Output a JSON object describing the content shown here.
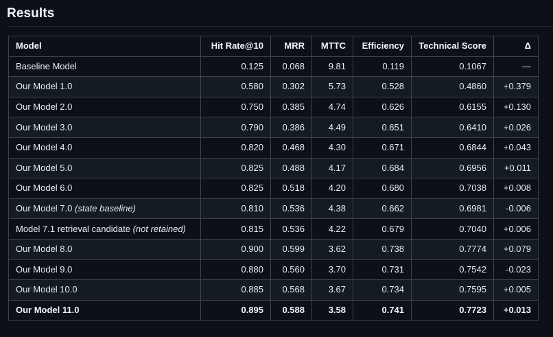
{
  "heading": "Results",
  "table": {
    "columns": [
      "Model",
      "Hit Rate@10",
      "MRR",
      "MTTC",
      "Efficiency",
      "Technical Score",
      "Δ"
    ],
    "rows": [
      {
        "model": "Baseline Model",
        "note": "",
        "hit": "0.125",
        "mrr": "0.068",
        "mttc": "9.81",
        "eff": "0.119",
        "tech": "0.1067",
        "delta": "—"
      },
      {
        "model": "Our Model 1.0",
        "note": "",
        "hit": "0.580",
        "mrr": "0.302",
        "mttc": "5.73",
        "eff": "0.528",
        "tech": "0.4860",
        "delta": "+0.379"
      },
      {
        "model": "Our Model 2.0",
        "note": "",
        "hit": "0.750",
        "mrr": "0.385",
        "mttc": "4.74",
        "eff": "0.626",
        "tech": "0.6155",
        "delta": "+0.130"
      },
      {
        "model": "Our Model 3.0",
        "note": "",
        "hit": "0.790",
        "mrr": "0.386",
        "mttc": "4.49",
        "eff": "0.651",
        "tech": "0.6410",
        "delta": "+0.026"
      },
      {
        "model": "Our Model 4.0",
        "note": "",
        "hit": "0.820",
        "mrr": "0.468",
        "mttc": "4.30",
        "eff": "0.671",
        "tech": "0.6844",
        "delta": "+0.043"
      },
      {
        "model": "Our Model 5.0",
        "note": "",
        "hit": "0.825",
        "mrr": "0.488",
        "mttc": "4.17",
        "eff": "0.684",
        "tech": "0.6956",
        "delta": "+0.011"
      },
      {
        "model": "Our Model 6.0",
        "note": "",
        "hit": "0.825",
        "mrr": "0.518",
        "mttc": "4.20",
        "eff": "0.680",
        "tech": "0.7038",
        "delta": "+0.008"
      },
      {
        "model": "Our Model 7.0",
        "note": "(state baseline)",
        "hit": "0.810",
        "mrr": "0.536",
        "mttc": "4.38",
        "eff": "0.662",
        "tech": "0.6981",
        "delta": "-0.006"
      },
      {
        "model": "Model 7.1 retrieval candidate",
        "note": "(not retained)",
        "hit": "0.815",
        "mrr": "0.536",
        "mttc": "4.22",
        "eff": "0.679",
        "tech": "0.7040",
        "delta": "+0.006"
      },
      {
        "model": "Our Model 8.0",
        "note": "",
        "hit": "0.900",
        "mrr": "0.599",
        "mttc": "3.62",
        "eff": "0.738",
        "tech": "0.7774",
        "delta": "+0.079"
      },
      {
        "model": "Our Model 9.0",
        "note": "",
        "hit": "0.880",
        "mrr": "0.560",
        "mttc": "3.70",
        "eff": "0.731",
        "tech": "0.7542",
        "delta": "-0.023"
      },
      {
        "model": "Our Model 10.0",
        "note": "",
        "hit": "0.885",
        "mrr": "0.568",
        "mttc": "3.67",
        "eff": "0.734",
        "tech": "0.7595",
        "delta": "+0.005"
      },
      {
        "model": "Our Model 11.0",
        "note": "",
        "hit": "0.895",
        "mrr": "0.588",
        "mttc": "3.58",
        "eff": "0.741",
        "tech": "0.7723",
        "delta": "+0.013",
        "bold": true
      }
    ]
  },
  "colors": {
    "background": "#0d1117",
    "row_alt": "#151b23",
    "border": "#3d444d",
    "text": "#e6edf3"
  }
}
